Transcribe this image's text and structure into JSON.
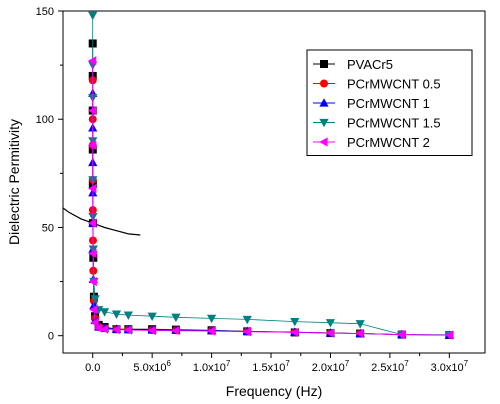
{
  "chart_data": {
    "type": "scatter",
    "title": "",
    "xlabel": "Frequency (Hz)",
    "ylabel": "Dielectric Permitivity",
    "xlim": [
      -2500000,
      33000000
    ],
    "ylim": [
      -8,
      150
    ],
    "legend_position": "top-right",
    "grid": false,
    "x_ticks": [
      {
        "value": 0,
        "label": "0.0"
      },
      {
        "value": 5000000,
        "label": "5.0x10",
        "exp": "6"
      },
      {
        "value": 10000000,
        "label": "1.0x10",
        "exp": "7"
      },
      {
        "value": 15000000,
        "label": "1.5x10",
        "exp": "7"
      },
      {
        "value": 20000000,
        "label": "2.0x10",
        "exp": "7"
      },
      {
        "value": 25000000,
        "label": "2.5x10",
        "exp": "7"
      },
      {
        "value": 30000000,
        "label": "3.0x10",
        "exp": "7"
      }
    ],
    "y_ticks": [
      {
        "value": 0,
        "label": "0"
      },
      {
        "value": 50,
        "label": "50"
      },
      {
        "value": 100,
        "label": "100"
      },
      {
        "value": 150,
        "label": "150"
      }
    ],
    "series": [
      {
        "name": "PVACr5",
        "color": "#000000",
        "marker": "square",
        "x": [
          100,
          1000,
          2000,
          5000,
          10000,
          20000,
          50000,
          100000,
          200000,
          500000,
          1000000,
          2000000,
          3000000,
          5000000,
          7000000,
          10000000,
          13000000,
          17000000,
          20000000,
          22500000,
          26000000,
          30000000
        ],
        "y": [
          135,
          120,
          104,
          86,
          70,
          52,
          36,
          18,
          9,
          5,
          4,
          3,
          3,
          3,
          2.8,
          2.5,
          2,
          1.5,
          1.2,
          1,
          0.5,
          0.3
        ]
      },
      {
        "name": "PCrMWCNT 0.5",
        "color": "#ff0000",
        "marker": "circle",
        "x": [
          100,
          1000,
          2000,
          5000,
          10000,
          20000,
          50000,
          100000,
          200000,
          500000,
          1000000,
          2000000,
          3000000,
          5000000,
          7000000,
          10000000,
          13000000,
          17000000,
          20000000,
          22500000,
          26000000,
          30000000
        ],
        "y": [
          118,
          100,
          88,
          72,
          58,
          44,
          30,
          16,
          8,
          4,
          3.5,
          3,
          2.8,
          2.6,
          2.5,
          2.3,
          2,
          1.6,
          1.3,
          1,
          0.5,
          0.3
        ]
      },
      {
        "name": "PCrMWCNT 1",
        "color": "#0000ff",
        "marker": "triangle-up",
        "x": [
          100,
          1000,
          2000,
          5000,
          10000,
          20000,
          50000,
          100000,
          200000,
          500000,
          1000000,
          2000000,
          3000000,
          5000000,
          7000000,
          10000000,
          13000000,
          17000000,
          20000000,
          22500000,
          26000000,
          30000000
        ],
        "y": [
          112,
          96,
          80,
          66,
          52,
          40,
          26,
          14,
          7,
          4,
          3.5,
          3,
          2.8,
          2.6,
          2.5,
          2.3,
          2,
          1.6,
          1.3,
          1,
          0.5,
          0.3
        ]
      },
      {
        "name": "PCrMWCNT 1.5",
        "color": "#008080",
        "marker": "triangle-down",
        "x": [
          100,
          1000,
          2000,
          5000,
          10000,
          20000,
          50000,
          100000,
          200000,
          500000,
          1000000,
          2000000,
          3000000,
          5000000,
          7000000,
          10000000,
          13000000,
          17000000,
          20000000,
          22500000,
          26000000,
          30000000
        ],
        "y": [
          148,
          125,
          110,
          90,
          72,
          55,
          40,
          25,
          17,
          12,
          11,
          10,
          9.5,
          9,
          8.5,
          8,
          7.5,
          6.5,
          6,
          5.5,
          0.5,
          0.5
        ]
      },
      {
        "name": "PCrMWCNT 2",
        "color": "#ff00ff",
        "marker": "triangle-left",
        "x": [
          100,
          1000,
          2000,
          5000,
          10000,
          20000,
          50000,
          100000,
          200000,
          500000,
          1000000,
          2000000,
          3000000,
          5000000,
          7000000,
          10000000,
          13000000,
          17000000,
          20000000,
          22500000,
          26000000,
          30000000
        ],
        "y": [
          127,
          104,
          88,
          68,
          52,
          38,
          25,
          12,
          6,
          3.5,
          3,
          2.8,
          2.6,
          2.4,
          2.3,
          2.1,
          1.8,
          1.5,
          1.2,
          1,
          0.5,
          0.3
        ]
      }
    ],
    "extra_curve": {
      "color": "#000000",
      "x": [
        -3800000,
        -3000000,
        -2000000,
        -1000000,
        0,
        1000000,
        2000000,
        3000000,
        4000000
      ],
      "y": [
        65,
        61,
        57,
        54,
        52,
        50,
        48.5,
        47,
        46.5
      ]
    }
  }
}
